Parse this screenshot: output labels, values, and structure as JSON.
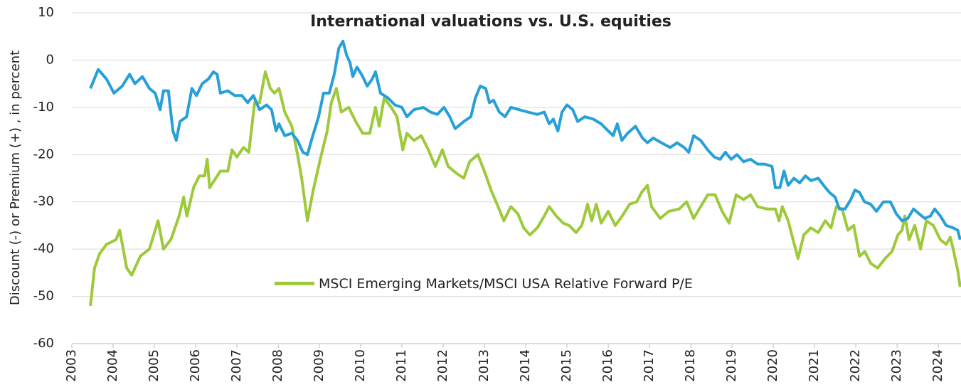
{
  "chart_data": {
    "type": "line",
    "title": "International valuations vs. U.S. equities",
    "y_label": "Discount (-) or Premium (+) , in percent",
    "xlim": [
      2003,
      2024.55
    ],
    "xticks": [
      2003,
      2004,
      2005,
      2006,
      2007,
      2008,
      2009,
      2010,
      2011,
      2012,
      2013,
      2014,
      2015,
      2016,
      2017,
      2018,
      2019,
      2020,
      2021,
      2022,
      2023,
      2024
    ],
    "ylim": [
      -60,
      10
    ],
    "yticks": [
      10,
      0,
      -10,
      -20,
      -30,
      -40,
      -50,
      -60
    ],
    "grid": true,
    "series": [
      {
        "color": "#27a0d8",
        "x": [
          2003.45,
          2003.64,
          2003.84,
          2004.02,
          2004.22,
          2004.4,
          2004.53,
          2004.71,
          2004.88,
          2005.02,
          2005.14,
          2005.22,
          2005.34,
          2005.45,
          2005.53,
          2005.62,
          2005.78,
          2005.91,
          2006.02,
          2006.16,
          2006.31,
          2006.43,
          2006.52,
          2006.6,
          2006.78,
          2006.95,
          2007.12,
          2007.26,
          2007.4,
          2007.55,
          2007.72,
          2007.84,
          2007.95,
          2008.02,
          2008.16,
          2008.33,
          2008.47,
          2008.6,
          2008.71,
          2008.84,
          2008.98,
          2009.1,
          2009.24,
          2009.36,
          2009.47,
          2009.57,
          2009.66,
          2009.74,
          2009.81,
          2009.91,
          2010.02,
          2010.16,
          2010.28,
          2010.36,
          2010.48,
          2010.66,
          2010.83,
          2011.0,
          2011.12,
          2011.29,
          2011.52,
          2011.69,
          2011.86,
          2012.02,
          2012.16,
          2012.29,
          2012.5,
          2012.67,
          2012.78,
          2012.9,
          2013.03,
          2013.12,
          2013.22,
          2013.36,
          2013.5,
          2013.64,
          2013.84,
          2014.05,
          2014.28,
          2014.45,
          2014.57,
          2014.67,
          2014.78,
          2014.88,
          2015.0,
          2015.14,
          2015.26,
          2015.43,
          2015.64,
          2015.83,
          2016.0,
          2016.12,
          2016.22,
          2016.33,
          2016.47,
          2016.66,
          2016.83,
          2016.95,
          2017.09,
          2017.29,
          2017.5,
          2017.67,
          2017.84,
          2017.95,
          2018.07,
          2018.24,
          2018.41,
          2018.57,
          2018.71,
          2018.84,
          2018.98,
          2019.12,
          2019.28,
          2019.45,
          2019.62,
          2019.79,
          2019.97,
          2020.05,
          2020.16,
          2020.26,
          2020.36,
          2020.5,
          2020.64,
          2020.78,
          2020.91,
          2021.09,
          2021.22,
          2021.36,
          2021.5,
          2021.6,
          2021.74,
          2021.88,
          2021.98,
          2022.09,
          2022.21,
          2022.36,
          2022.5,
          2022.67,
          2022.84,
          2022.98,
          2023.12,
          2023.26,
          2023.4,
          2023.53,
          2023.67,
          2023.81,
          2023.91,
          2024.05,
          2024.19,
          2024.36,
          2024.47,
          2024.53
        ],
        "values": [
          -6,
          -2,
          -4,
          -7,
          -5.5,
          -3,
          -5,
          -3.5,
          -6,
          -7,
          -10.5,
          -6.5,
          -6.5,
          -15,
          -17,
          -13,
          -12,
          -6,
          -7.5,
          -5,
          -4,
          -2.5,
          -3,
          -7,
          -6.5,
          -7.5,
          -7.5,
          -9,
          -7.5,
          -10.5,
          -9.5,
          -10.5,
          -15,
          -13.5,
          -16,
          -15.5,
          -17,
          -19.5,
          -20,
          -16,
          -12,
          -7,
          -7,
          -3,
          2.5,
          4,
          1,
          -0.5,
          -3.5,
          -1.5,
          -3,
          -5.5,
          -4,
          -2.5,
          -7,
          -8,
          -9.5,
          -10,
          -12,
          -10.5,
          -10,
          -11,
          -11.5,
          -10,
          -12,
          -14.5,
          -13,
          -12,
          -8,
          -5.5,
          -6,
          -9,
          -8.5,
          -11,
          -12,
          -10,
          -10.5,
          -11,
          -11.5,
          -11,
          -13.5,
          -12.5,
          -15,
          -11,
          -9.5,
          -10.5,
          -13,
          -12,
          -12.5,
          -13.5,
          -15,
          -16,
          -13.5,
          -17,
          -15.5,
          -14,
          -16.5,
          -17.5,
          -16.5,
          -17.5,
          -18.5,
          -17.5,
          -18.5,
          -19.5,
          -16,
          -17,
          -19,
          -20.5,
          -21,
          -19.5,
          -21,
          -20,
          -21.5,
          -21,
          -22,
          -22,
          -22.5,
          -27,
          -27,
          -23.5,
          -26.5,
          -25,
          -26,
          -24.5,
          -25.5,
          -25,
          -26.5,
          -28,
          -29,
          -31.5,
          -31.5,
          -29.5,
          -27.5,
          -28,
          -30,
          -30.5,
          -32,
          -30,
          -30,
          -32.5,
          -34,
          -33.5,
          -31.5,
          -32.5,
          -33.5,
          -33,
          -31.5,
          -33,
          -35,
          -35.5,
          -36,
          -38
        ]
      },
      {
        "name": "MSCI Emerging Markets/MSCI USA Relative Forward P/E",
        "color": "#9dc93b",
        "x": [
          2003.45,
          2003.55,
          2003.67,
          2003.84,
          2004.07,
          2004.16,
          2004.33,
          2004.45,
          2004.66,
          2004.88,
          2005.09,
          2005.22,
          2005.4,
          2005.6,
          2005.71,
          2005.79,
          2005.95,
          2006.09,
          2006.22,
          2006.28,
          2006.34,
          2006.6,
          2006.78,
          2006.88,
          2007.0,
          2007.16,
          2007.29,
          2007.43,
          2007.55,
          2007.69,
          2007.81,
          2007.91,
          2008.02,
          2008.16,
          2008.33,
          2008.47,
          2008.57,
          2008.71,
          2008.84,
          2009.02,
          2009.19,
          2009.29,
          2009.41,
          2009.53,
          2009.71,
          2009.88,
          2010.05,
          2010.22,
          2010.36,
          2010.45,
          2010.57,
          2010.74,
          2010.88,
          2011.02,
          2011.12,
          2011.29,
          2011.47,
          2011.64,
          2011.81,
          2011.98,
          2012.12,
          2012.33,
          2012.5,
          2012.64,
          2012.84,
          2013.02,
          2013.16,
          2013.33,
          2013.47,
          2013.64,
          2013.81,
          2013.95,
          2014.1,
          2014.28,
          2014.45,
          2014.57,
          2014.74,
          2014.91,
          2015.05,
          2015.22,
          2015.36,
          2015.5,
          2015.6,
          2015.71,
          2015.83,
          2016.0,
          2016.17,
          2016.34,
          2016.52,
          2016.69,
          2016.81,
          2016.95,
          2017.05,
          2017.26,
          2017.47,
          2017.72,
          2017.9,
          2018.07,
          2018.24,
          2018.41,
          2018.59,
          2018.76,
          2018.93,
          2019.1,
          2019.28,
          2019.45,
          2019.62,
          2019.84,
          2020.05,
          2020.14,
          2020.22,
          2020.36,
          2020.48,
          2020.6,
          2020.74,
          2020.91,
          2021.09,
          2021.26,
          2021.4,
          2021.53,
          2021.67,
          2021.81,
          2021.95,
          2022.09,
          2022.22,
          2022.36,
          2022.53,
          2022.71,
          2022.88,
          2023.02,
          2023.12,
          2023.19,
          2023.29,
          2023.43,
          2023.57,
          2023.71,
          2023.88,
          2024.05,
          2024.19,
          2024.29,
          2024.36,
          2024.47,
          2024.53
        ],
        "values": [
          -52,
          -44,
          -41,
          -39,
          -38,
          -36,
          -44,
          -45.5,
          -41.5,
          -40,
          -34,
          -40,
          -38,
          -33,
          -29,
          -33,
          -27,
          -24.5,
          -24.5,
          -21,
          -27,
          -23.5,
          -23.5,
          -19,
          -20.5,
          -18.5,
          -19.5,
          -9,
          -9,
          -2.5,
          -6,
          -7,
          -6,
          -11,
          -14,
          -20,
          -25,
          -34,
          -28,
          -21,
          -15,
          -9,
          -6,
          -11,
          -10,
          -13,
          -15.5,
          -15.5,
          -10,
          -14,
          -8,
          -10,
          -12,
          -19,
          -15.5,
          -17,
          -16,
          -19,
          -22.5,
          -19,
          -22.5,
          -24,
          -25,
          -21.5,
          -20,
          -24,
          -27.5,
          -31,
          -34,
          -31,
          -32.5,
          -35.5,
          -37,
          -35.5,
          -33,
          -31,
          -33,
          -34.5,
          -35,
          -36.5,
          -35,
          -30.5,
          -34,
          -30.5,
          -34.5,
          -32,
          -35,
          -33,
          -30.5,
          -30,
          -28,
          -26.5,
          -31,
          -33.5,
          -32,
          -31.5,
          -30,
          -33.5,
          -31,
          -28.5,
          -28.5,
          -32,
          -34.5,
          -28.5,
          -29.5,
          -28.5,
          -31,
          -31.5,
          -31.5,
          -34,
          -31,
          -34,
          -38,
          -42,
          -37,
          -35.5,
          -36.5,
          -34,
          -35.5,
          -31,
          -31.5,
          -36,
          -35,
          -41.5,
          -40.5,
          -43,
          -44,
          -42,
          -40.5,
          -37,
          -36,
          -33,
          -38,
          -35,
          -40,
          -34,
          -35,
          -38,
          -39,
          -37.5,
          -40,
          -44.5,
          -48
        ]
      }
    ]
  }
}
